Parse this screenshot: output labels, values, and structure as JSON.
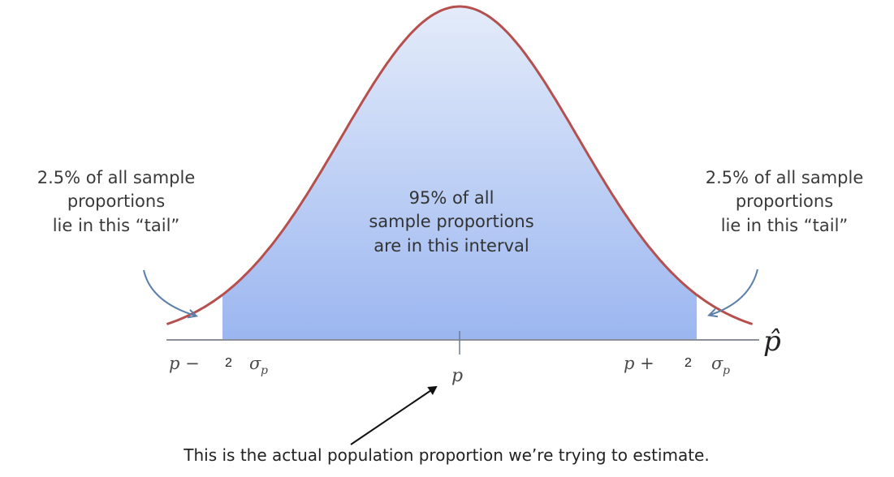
{
  "notes": {
    "left_tail": [
      "2.5% of all sample",
      "proportions",
      "lie in this “tail”"
    ],
    "right_tail": [
      "2.5% of all sample",
      "proportions",
      "lie in this “tail”"
    ],
    "center": [
      "95% of all",
      "sample proportions",
      "are in this interval"
    ],
    "caption": "This is the actual population proportion we’re trying to estimate."
  },
  "axis": {
    "left_bound": {
      "prefix": "p −",
      "multiplier": "2",
      "sigma": "σ",
      "sigma_sub": "p"
    },
    "right_bound": {
      "prefix": "p +",
      "multiplier": "2",
      "sigma": "σ",
      "sigma_sub": "p"
    },
    "center": "p",
    "variable": "p̂"
  },
  "colors": {
    "curve": "#b5504e",
    "fill_top": "#dde7f8",
    "fill_bottom": "#9bb6f0",
    "axis": "#8a8f98",
    "arrow": "#5b7fa9"
  }
}
